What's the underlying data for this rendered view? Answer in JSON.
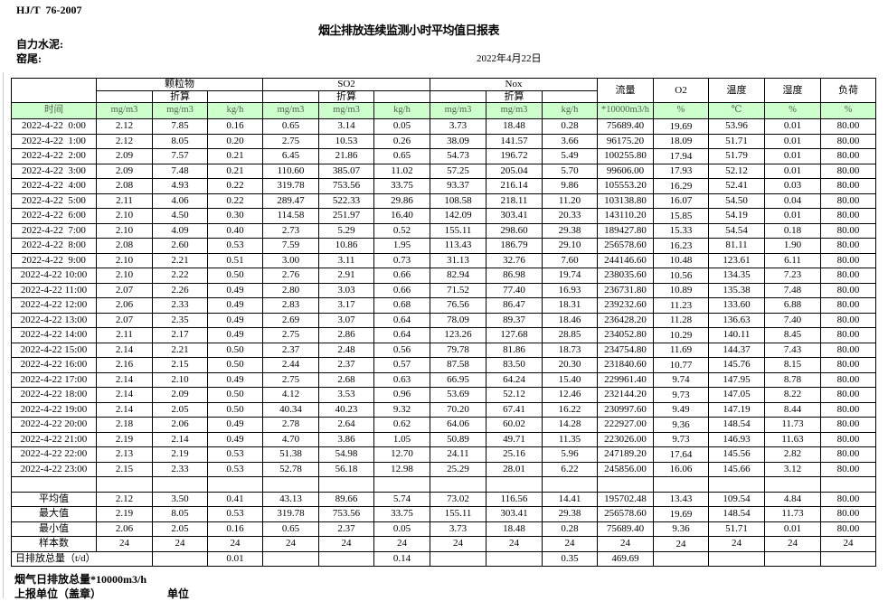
{
  "header": {
    "standard": "HJ/T  76-2007",
    "title": "烟尘排放连续监测小时平均值日报表",
    "company": "自力水泥:",
    "station": "窑尾:",
    "date": "2022年4月22日"
  },
  "table": {
    "time_header": "时间",
    "groups": {
      "pm": "颗粒物",
      "so2": "SO2",
      "nox": "Nox",
      "converted": "折算",
      "flow": "流量",
      "o2": "O2",
      "temperature": "温度",
      "humidity": "湿度",
      "load": "负荷"
    },
    "units": [
      "mg/m3",
      "mg/m3",
      "kg/h",
      "mg/m3",
      "mg/m3",
      "kg/h",
      "mg/m3",
      "mg/m3",
      "kg/h",
      "*10000m3/h",
      "%",
      "℃",
      "%",
      "%"
    ],
    "rows": [
      {
        "time": "2022-4-22  0:00",
        "values": [
          "2.12",
          "7.85",
          "0.16",
          "0.65",
          "3.14",
          "0.05",
          "3.73",
          "18.48",
          "0.28",
          "75689.40",
          "19.69",
          "53.96",
          "0.01",
          "80.00"
        ]
      },
      {
        "time": "2022-4-22  1:00",
        "values": [
          "2.12",
          "8.05",
          "0.20",
          "2.75",
          "10.53",
          "0.26",
          "38.09",
          "141.57",
          "3.66",
          "96175.20",
          "18.09",
          "51.71",
          "0.01",
          "80.00"
        ]
      },
      {
        "time": "2022-4-22  2:00",
        "values": [
          "2.09",
          "7.57",
          "0.21",
          "6.45",
          "21.86",
          "0.65",
          "54.73",
          "196.72",
          "5.49",
          "100255.80",
          "17.94",
          "51.79",
          "0.01",
          "80.00"
        ]
      },
      {
        "time": "2022-4-22  3:00",
        "values": [
          "2.09",
          "7.48",
          "0.21",
          "110.60",
          "385.07",
          "11.02",
          "57.25",
          "205.04",
          "5.70",
          "99606.00",
          "17.93",
          "52.12",
          "0.01",
          "80.00"
        ]
      },
      {
        "time": "2022-4-22  4:00",
        "values": [
          "2.08",
          "4.93",
          "0.22",
          "319.78",
          "753.56",
          "33.75",
          "93.37",
          "216.14",
          "9.86",
          "105553.20",
          "16.29",
          "52.41",
          "0.03",
          "80.00"
        ]
      },
      {
        "time": "2022-4-22  5:00",
        "values": [
          "2.11",
          "4.06",
          "0.22",
          "289.47",
          "522.33",
          "29.86",
          "108.58",
          "218.11",
          "11.20",
          "103138.80",
          "16.07",
          "54.50",
          "0.04",
          "80.00"
        ]
      },
      {
        "time": "2022-4-22  6:00",
        "values": [
          "2.10",
          "4.50",
          "0.30",
          "114.58",
          "251.97",
          "16.40",
          "142.09",
          "303.41",
          "20.33",
          "143110.20",
          "15.85",
          "54.19",
          "0.01",
          "80.00"
        ]
      },
      {
        "time": "2022-4-22  7:00",
        "values": [
          "2.10",
          "4.09",
          "0.40",
          "2.73",
          "5.29",
          "0.52",
          "155.11",
          "298.60",
          "29.38",
          "189427.80",
          "15.33",
          "54.54",
          "0.18",
          "80.00"
        ]
      },
      {
        "time": "2022-4-22  8:00",
        "values": [
          "2.08",
          "2.60",
          "0.53",
          "7.59",
          "10.86",
          "1.95",
          "113.43",
          "186.79",
          "29.10",
          "256578.60",
          "16.23",
          "81.11",
          "1.90",
          "80.00"
        ]
      },
      {
        "time": "2022-4-22  9:00",
        "values": [
          "2.10",
          "2.21",
          "0.51",
          "3.00",
          "3.11",
          "0.73",
          "31.13",
          "32.76",
          "7.60",
          "244146.60",
          "10.48",
          "123.61",
          "6.11",
          "80.00"
        ]
      },
      {
        "time": "2022-4-22 10:00",
        "values": [
          "2.10",
          "2.22",
          "0.50",
          "2.76",
          "2.91",
          "0.66",
          "82.94",
          "86.98",
          "19.74",
          "238035.60",
          "10.56",
          "134.35",
          "7.23",
          "80.00"
        ]
      },
      {
        "time": "2022-4-22 11:00",
        "values": [
          "2.07",
          "2.26",
          "0.49",
          "2.80",
          "3.03",
          "0.66",
          "71.52",
          "77.40",
          "16.93",
          "236731.80",
          "10.89",
          "135.38",
          "7.48",
          "80.00"
        ]
      },
      {
        "time": "2022-4-22 12:00",
        "values": [
          "2.06",
          "2.33",
          "0.49",
          "2.83",
          "3.17",
          "0.68",
          "76.56",
          "86.47",
          "18.31",
          "239232.60",
          "11.23",
          "133.60",
          "6.88",
          "80.00"
        ]
      },
      {
        "time": "2022-4-22 13:00",
        "values": [
          "2.07",
          "2.35",
          "0.49",
          "2.69",
          "3.07",
          "0.64",
          "78.09",
          "89.37",
          "18.46",
          "236428.20",
          "11.28",
          "136.63",
          "7.40",
          "80.00"
        ]
      },
      {
        "time": "2022-4-22 14:00",
        "values": [
          "2.11",
          "2.17",
          "0.49",
          "2.75",
          "2.86",
          "0.64",
          "123.26",
          "127.68",
          "28.85",
          "234052.80",
          "10.29",
          "140.11",
          "8.45",
          "80.00"
        ]
      },
      {
        "time": "2022-4-22 15:00",
        "values": [
          "2.14",
          "2.21",
          "0.50",
          "2.37",
          "2.48",
          "0.56",
          "79.78",
          "81.86",
          "18.73",
          "234754.80",
          "11.69",
          "144.37",
          "7.43",
          "80.00"
        ]
      },
      {
        "time": "2022-4-22 16:00",
        "values": [
          "2.16",
          "2.15",
          "0.50",
          "2.44",
          "2.37",
          "0.57",
          "87.58",
          "83.50",
          "20.30",
          "231840.60",
          "10.77",
          "145.76",
          "8.15",
          "80.00"
        ]
      },
      {
        "time": "2022-4-22 17:00",
        "values": [
          "2.14",
          "2.10",
          "0.49",
          "2.75",
          "2.68",
          "0.63",
          "66.95",
          "64.24",
          "15.40",
          "229961.40",
          "9.74",
          "147.95",
          "8.78",
          "80.00"
        ]
      },
      {
        "time": "2022-4-22 18:00",
        "values": [
          "2.14",
          "2.09",
          "0.50",
          "4.12",
          "3.53",
          "0.96",
          "53.69",
          "52.12",
          "12.46",
          "232144.20",
          "9.73",
          "147.05",
          "8.22",
          "80.00"
        ]
      },
      {
        "time": "2022-4-22 19:00",
        "values": [
          "2.14",
          "2.05",
          "0.50",
          "40.34",
          "40.23",
          "9.32",
          "70.20",
          "67.41",
          "16.22",
          "230997.60",
          "9.49",
          "147.19",
          "8.44",
          "80.00"
        ]
      },
      {
        "time": "2022-4-22 20:00",
        "values": [
          "2.18",
          "2.06",
          "0.49",
          "2.78",
          "2.64",
          "0.62",
          "64.06",
          "60.02",
          "14.28",
          "222927.00",
          "9.36",
          "148.54",
          "11.73",
          "80.00"
        ]
      },
      {
        "time": "2022-4-22 21:00",
        "values": [
          "2.19",
          "2.14",
          "0.49",
          "4.70",
          "3.86",
          "1.05",
          "50.89",
          "49.71",
          "11.35",
          "223026.00",
          "9.73",
          "146.93",
          "11.63",
          "80.00"
        ]
      },
      {
        "time": "2022-4-22 22:00",
        "values": [
          "2.13",
          "2.19",
          "0.53",
          "51.38",
          "54.98",
          "12.70",
          "24.11",
          "25.16",
          "5.96",
          "247189.20",
          "17.64",
          "145.56",
          "2.82",
          "80.00"
        ]
      },
      {
        "time": "2022-4-22 23:00",
        "values": [
          "2.15",
          "2.33",
          "0.53",
          "52.78",
          "56.18",
          "12.98",
          "25.29",
          "28.01",
          "6.22",
          "245856.00",
          "16.06",
          "145.66",
          "3.12",
          "80.00"
        ]
      }
    ],
    "summary_rows": [
      {
        "label": "平均值",
        "values": [
          "2.12",
          "3.50",
          "0.41",
          "43.13",
          "89.66",
          "5.74",
          "73.02",
          "116.56",
          "14.41",
          "195702.48",
          "13.43",
          "109.54",
          "4.84",
          "80.00"
        ]
      },
      {
        "label": "最大值",
        "values": [
          "2.19",
          "8.05",
          "0.53",
          "319.78",
          "753.56",
          "33.75",
          "155.11",
          "303.41",
          "29.38",
          "256578.60",
          "19.69",
          "148.54",
          "11.73",
          "80.00"
        ]
      },
      {
        "label": "最小值",
        "values": [
          "2.06",
          "2.05",
          "0.16",
          "0.65",
          "2.37",
          "0.05",
          "3.73",
          "18.48",
          "0.28",
          "75689.40",
          "9.36",
          "51.71",
          "0.01",
          "80.00"
        ]
      },
      {
        "label": "样本数",
        "values": [
          "24",
          "24",
          "24",
          "24",
          "24",
          "24",
          "24",
          "24",
          "24",
          "24",
          "24",
          "24",
          "24",
          "24"
        ]
      }
    ],
    "daily_total_row": {
      "label": "日排放总量（t/d）",
      "values": [
        "",
        "0.01",
        "",
        "",
        "0.14",
        "",
        "",
        "0.35",
        "469.69",
        "",
        "",
        "",
        ""
      ]
    }
  },
  "footer": {
    "flue_gas_daily_total": "烟气日排放总量*10000m3/h",
    "reporting_unit": "上报单位（盖章）",
    "unit_label": "单位"
  },
  "colors": {
    "header_row_bg": "#ccffcc",
    "border": "#000000"
  }
}
